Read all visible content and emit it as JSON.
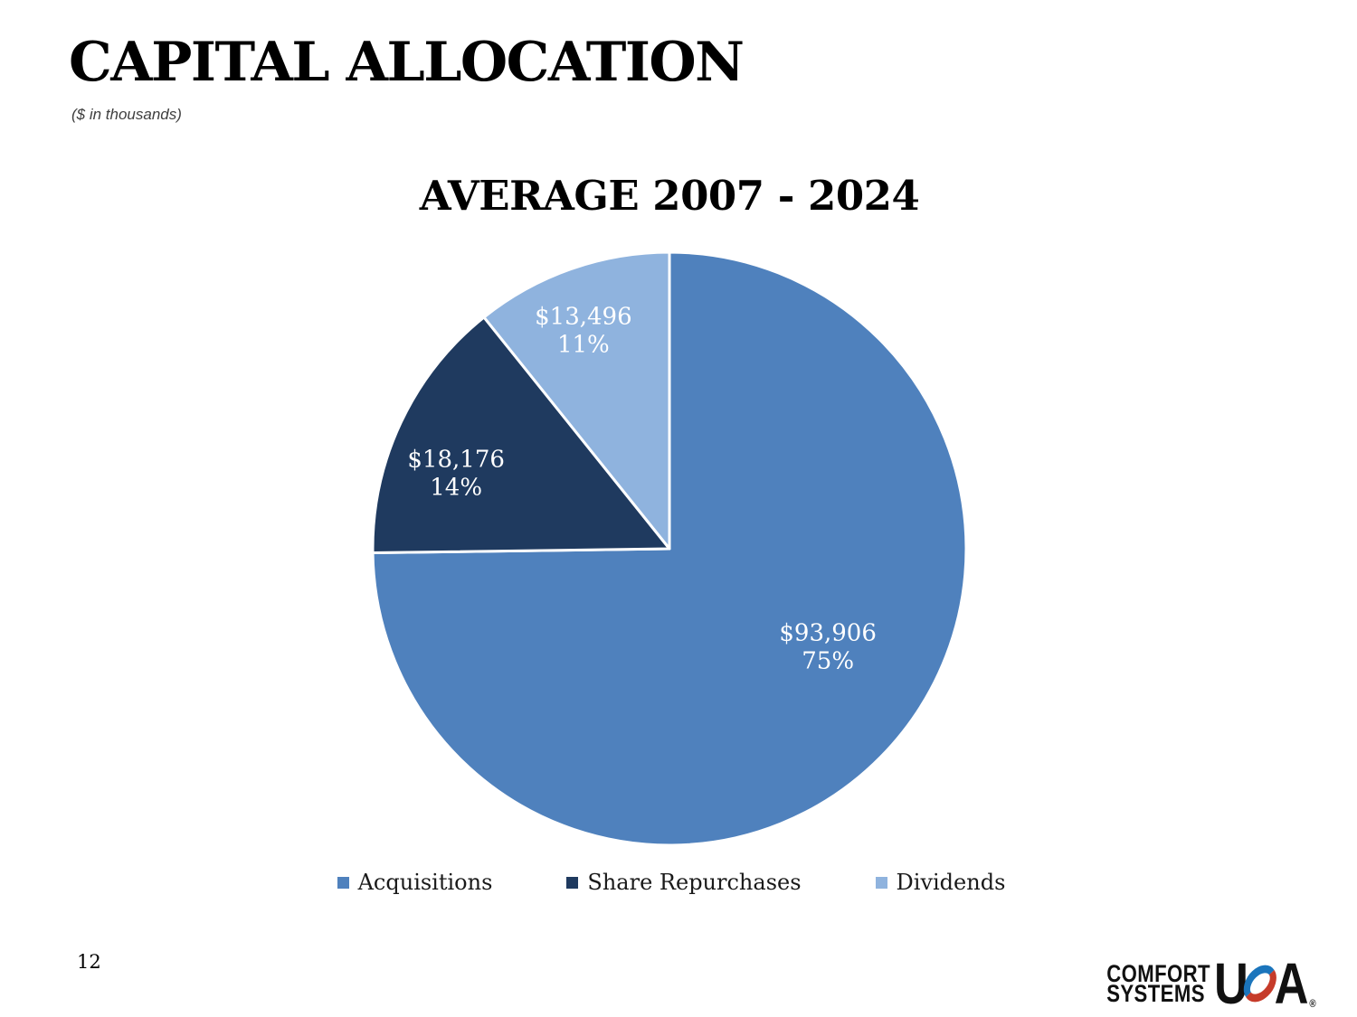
{
  "slide": {
    "title": "CAPITAL ALLOCATION",
    "subtitle": "($ in thousands)",
    "page_number": "12"
  },
  "chart_data": {
    "type": "pie",
    "title": "AVERAGE 2007 - 2024",
    "categories": [
      "Acquisitions",
      "Share Repurchases",
      "Dividends"
    ],
    "values": [
      93906,
      18176,
      13496
    ],
    "percentages": [
      75,
      14,
      11
    ],
    "value_labels": [
      "$93,906",
      "$18,176",
      "$13,496"
    ],
    "percent_labels": [
      "75%",
      "14%",
      "11%"
    ],
    "colors": [
      "#4f81bd",
      "#1f3a5f",
      "#8fb3de"
    ],
    "start_angle_deg": 0,
    "direction": "clockwise",
    "legend_position": "bottom",
    "label_text_color": "#ffffff",
    "slice_border_color": "#ffffff"
  },
  "logo": {
    "line1": "COMFORT",
    "line2": "SYSTEMS",
    "usa_u": "U",
    "usa_a": "A",
    "registered_mark": "®",
    "swoosh_blue": "#1b75bc",
    "swoosh_red": "#c63b2a"
  }
}
